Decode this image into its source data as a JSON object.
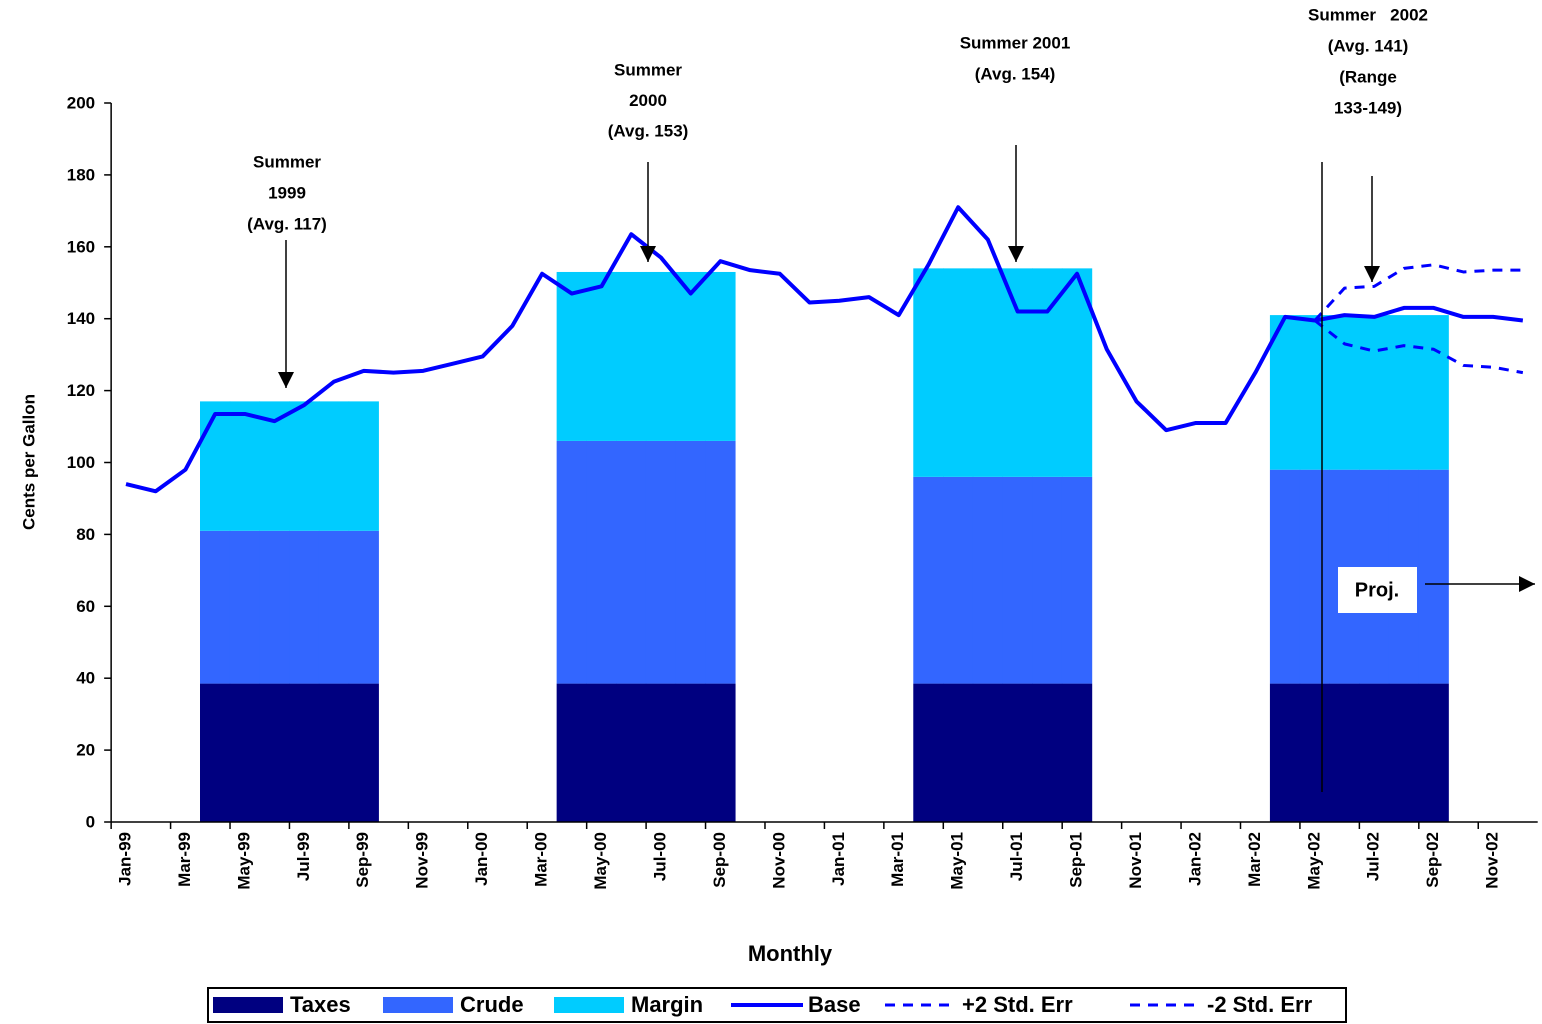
{
  "chart_data": {
    "type": "combo",
    "x_label": "Monthly",
    "y_label": "Cents per Gallon",
    "categories": [
      "Jan-99",
      null,
      "Mar-99",
      null,
      "May-99",
      null,
      "Jul-99",
      null,
      "Sep-99",
      null,
      "Nov-99",
      null,
      "Jan-00",
      null,
      "Mar-00",
      null,
      "May-00",
      null,
      "Jul-00",
      null,
      "Sep-00",
      null,
      "Nov-00",
      null,
      "Jan-01",
      null,
      "Mar-01",
      null,
      "May-01",
      null,
      "Jul-01",
      null,
      "Sep-01",
      null,
      "Nov-01",
      null,
      "Jan-02",
      null,
      "Mar-02",
      null,
      "May-02",
      null,
      "Jul-02",
      null,
      "Sep-02",
      null,
      "Nov-02",
      null
    ],
    "ylim": [
      0,
      200
    ],
    "yticks": [
      0,
      20,
      40,
      60,
      80,
      100,
      120,
      140,
      160,
      180,
      200
    ],
    "series": [
      {
        "name": "Taxes",
        "type": "bar",
        "color": "#000080",
        "values": [
          null,
          null,
          null,
          38.5,
          38.5,
          38.5,
          38.5,
          38.5,
          38.5,
          null,
          null,
          null,
          null,
          null,
          null,
          38.5,
          38.5,
          38.5,
          38.5,
          38.5,
          38.5,
          null,
          null,
          null,
          null,
          null,
          null,
          38.5,
          38.5,
          38.5,
          38.5,
          38.5,
          38.5,
          null,
          null,
          null,
          null,
          null,
          null,
          38.5,
          38.5,
          38.5,
          38.5,
          38.5,
          38.5,
          null,
          null,
          null
        ]
      },
      {
        "name": "Crude",
        "type": "bar",
        "color": "#3366ff",
        "values": [
          null,
          null,
          null,
          42.5,
          42.5,
          42.5,
          42.5,
          42.5,
          42.5,
          null,
          null,
          null,
          null,
          null,
          null,
          67.5,
          67.5,
          67.5,
          67.5,
          67.5,
          67.5,
          null,
          null,
          null,
          null,
          null,
          null,
          57.5,
          57.5,
          57.5,
          57.5,
          57.5,
          57.5,
          null,
          null,
          null,
          null,
          null,
          null,
          59.5,
          59.5,
          59.5,
          59.5,
          59.5,
          59.5,
          null,
          null,
          null
        ]
      },
      {
        "name": "Margin",
        "type": "bar",
        "color": "#00ccff",
        "values": [
          null,
          null,
          null,
          36,
          36,
          36,
          36,
          36,
          36,
          null,
          null,
          null,
          null,
          null,
          null,
          47,
          47,
          47,
          47,
          47,
          47,
          null,
          null,
          null,
          null,
          null,
          null,
          58,
          58,
          58,
          58,
          58,
          58,
          null,
          null,
          null,
          null,
          null,
          null,
          43,
          43,
          43,
          43,
          43,
          43,
          null,
          null,
          null
        ]
      },
      {
        "name": "Base",
        "type": "line",
        "color": "#0000ff",
        "dashed": false,
        "values": [
          94,
          92,
          98,
          113.5,
          113.5,
          111.5,
          116,
          122.5,
          125.5,
          125,
          125.5,
          127.5,
          129.5,
          138,
          152.5,
          147,
          149,
          163.5,
          157,
          147,
          156,
          153.5,
          152.5,
          144.5,
          145,
          146,
          141,
          155,
          171,
          162,
          142,
          142,
          152.5,
          131.5,
          117,
          109,
          111,
          111,
          125,
          140.5,
          139.5,
          141,
          140.5,
          143,
          143,
          140.5,
          140.5,
          139.5
        ]
      },
      {
        "name": "+2 Std. Err",
        "type": "line",
        "color": "#0000ff",
        "dashed": true,
        "values": [
          null,
          null,
          null,
          null,
          null,
          null,
          null,
          null,
          null,
          null,
          null,
          null,
          null,
          null,
          null,
          null,
          null,
          null,
          null,
          null,
          null,
          null,
          null,
          null,
          null,
          null,
          null,
          null,
          null,
          null,
          null,
          null,
          null,
          null,
          null,
          null,
          null,
          null,
          null,
          null,
          139.5,
          148.5,
          149,
          154,
          155,
          153,
          153.5,
          153.5
        ]
      },
      {
        "name": "-2 Std. Err",
        "type": "line",
        "color": "#0000ff",
        "dashed": true,
        "values": [
          null,
          null,
          null,
          null,
          null,
          null,
          null,
          null,
          null,
          null,
          null,
          null,
          null,
          null,
          null,
          null,
          null,
          null,
          null,
          null,
          null,
          null,
          null,
          null,
          null,
          null,
          null,
          null,
          null,
          null,
          null,
          null,
          null,
          null,
          null,
          null,
          null,
          null,
          null,
          null,
          139.5,
          133,
          131,
          132.5,
          131.5,
          127,
          126.5,
          125
        ]
      }
    ],
    "annotations": [
      {
        "lines": [
          "Summer",
          "1999",
          "(Avg. 117)"
        ]
      },
      {
        "lines": [
          "Summer",
          "2000",
          "(Avg. 153)"
        ]
      },
      {
        "lines": [
          "Summer 2001",
          "(Avg. 154)"
        ]
      },
      {
        "lines": [
          "Summer   2002",
          "(Avg. 141)",
          "(Range",
          "133-149)"
        ]
      }
    ],
    "projection_label": "Proj."
  }
}
